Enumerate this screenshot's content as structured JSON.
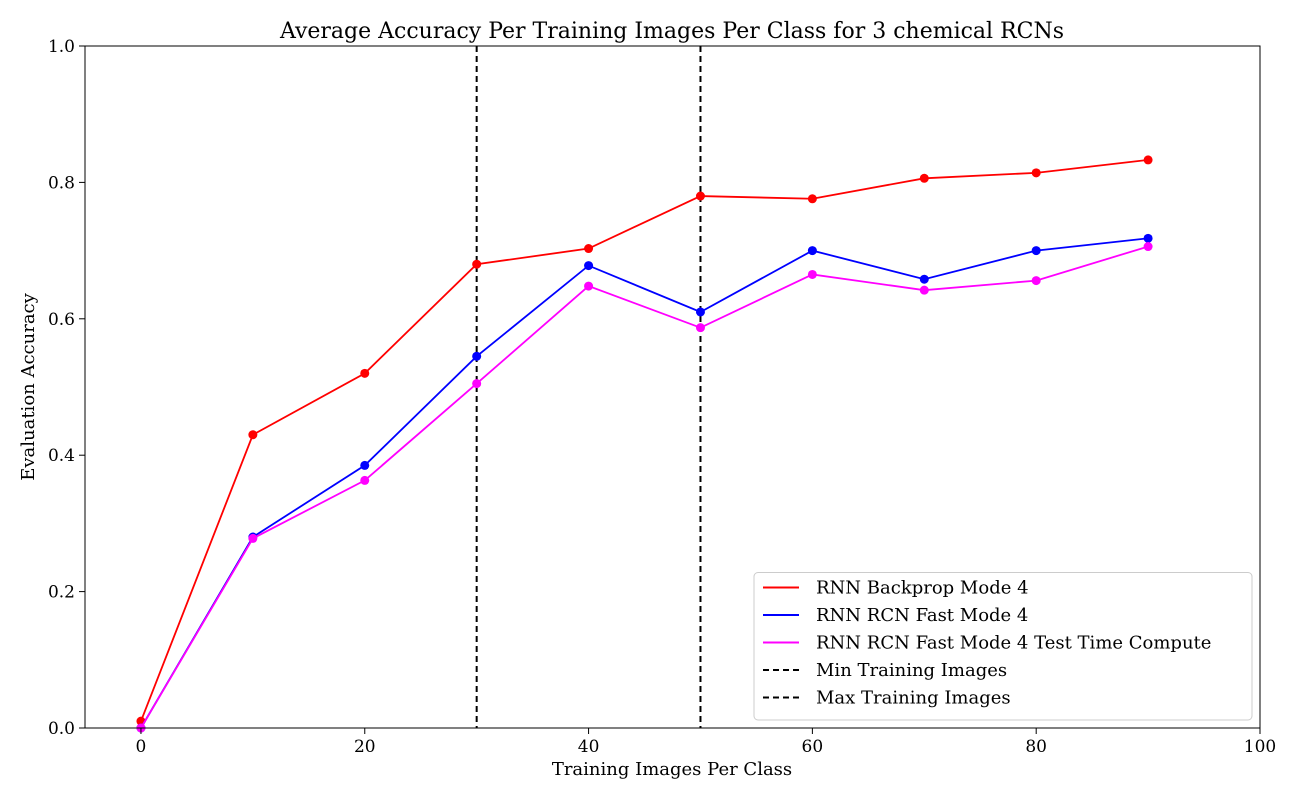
{
  "chart_data": {
    "type": "line",
    "title": "Average Accuracy Per Training Images Per Class for 3 chemical RCNs",
    "xlabel": "Training Images Per Class",
    "ylabel": "Evaluation Accuracy",
    "xlim": [
      -5,
      100
    ],
    "ylim": [
      0.0,
      1.0
    ],
    "xticks": [
      0,
      20,
      40,
      60,
      80,
      100
    ],
    "yticks": [
      0.0,
      0.2,
      0.4,
      0.6,
      0.8,
      1.0
    ],
    "xtick_labels": [
      "0",
      "20",
      "40",
      "60",
      "80",
      "100"
    ],
    "ytick_labels": [
      "0.0",
      "0.2",
      "0.4",
      "0.6",
      "0.8",
      "1.0"
    ],
    "grid": false,
    "legend_position": "lower-right",
    "x": [
      0,
      10,
      20,
      30,
      40,
      50,
      60,
      70,
      80,
      90
    ],
    "series": [
      {
        "name": "RNN Backprop Mode 4",
        "color": "#ff0000",
        "values": [
          0.01,
          0.43,
          0.52,
          0.68,
          0.703,
          0.78,
          0.776,
          0.806,
          0.814,
          0.833
        ]
      },
      {
        "name": "RNN RCN Fast Mode 4",
        "color": "#0000ff",
        "values": [
          0.0,
          0.28,
          0.385,
          0.545,
          0.678,
          0.61,
          0.7,
          0.658,
          0.7,
          0.718
        ]
      },
      {
        "name": "RNN RCN Fast Mode 4 Test Time Compute",
        "color": "#ff00ff",
        "values": [
          0.0,
          0.278,
          0.363,
          0.505,
          0.648,
          0.587,
          0.665,
          0.642,
          0.656,
          0.706
        ]
      }
    ],
    "vlines": [
      {
        "name": "Min Training Images",
        "x": 30,
        "color": "#000000",
        "style": "dashed"
      },
      {
        "name": "Max Training Images",
        "x": 50,
        "color": "#000000",
        "style": "dashed"
      }
    ]
  }
}
